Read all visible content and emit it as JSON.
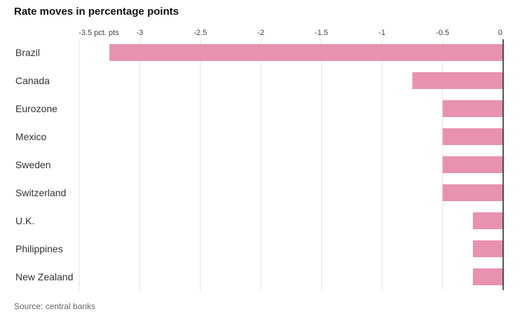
{
  "chart_data": {
    "type": "bar",
    "orientation": "horizontal",
    "title": "Rate moves in percentage points",
    "source": "Source: central banks",
    "categories": [
      "Brazil",
      "Canada",
      "Eurozone",
      "Mexico",
      "Sweden",
      "Switzerland",
      "U.K.",
      "Philippines",
      "New Zealand"
    ],
    "values": [
      -3.25,
      -0.75,
      -0.5,
      -0.5,
      -0.5,
      -0.5,
      -0.25,
      -0.25,
      -0.25
    ],
    "xlim": [
      -3.5,
      0
    ],
    "ticks": [
      {
        "value": -3.5,
        "label": "-3.5 pct. pts"
      },
      {
        "value": -3,
        "label": "-3"
      },
      {
        "value": -2.5,
        "label": "-2.5"
      },
      {
        "value": -2,
        "label": "-2"
      },
      {
        "value": -1.5,
        "label": "-1.5"
      },
      {
        "value": -1,
        "label": "-1"
      },
      {
        "value": -0.5,
        "label": "-0.5"
      },
      {
        "value": 0,
        "label": "0"
      }
    ],
    "bar_color": "#e891b0",
    "grid": true
  }
}
